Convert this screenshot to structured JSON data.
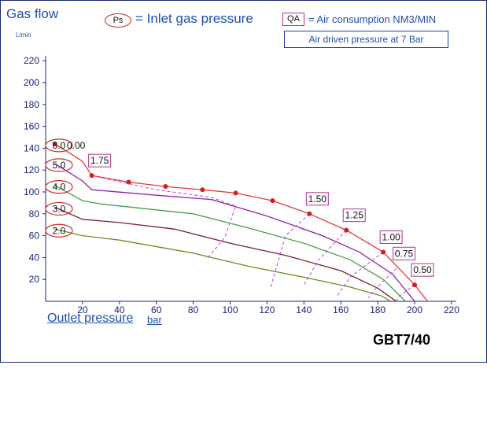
{
  "chart_data": {
    "type": "line",
    "title": "Gas flow",
    "ylabel_unit": "L/min",
    "xlabel": "Outlet pressure",
    "xunit": "bar",
    "model": "GBT7/40",
    "legend": {
      "ps_symbol": "Ps",
      "ps_text": "= Inlet gas pressure",
      "qa_symbol": "QA",
      "qa_text": "= Air consumption NM3/MIN",
      "driven_text": "Air driven pressure at 7 Bar"
    },
    "xlim": [
      0,
      220
    ],
    "ylim": [
      0,
      220
    ],
    "x_ticks": [
      20,
      40,
      60,
      80,
      100,
      120,
      140,
      160,
      180,
      200,
      220
    ],
    "y_ticks": [
      20,
      40,
      60,
      80,
      100,
      120,
      140,
      160,
      180,
      200,
      220
    ],
    "series": [
      {
        "name": "6.0",
        "color": "#e53935",
        "points": [
          [
            5,
            144
          ],
          [
            20,
            128
          ],
          [
            25,
            115
          ],
          [
            45,
            109
          ],
          [
            65,
            105
          ],
          [
            85,
            102
          ],
          [
            103,
            99
          ],
          [
            123,
            92
          ],
          [
            143,
            80
          ],
          [
            163,
            65
          ],
          [
            183,
            45
          ],
          [
            200,
            15
          ],
          [
            207,
            0
          ]
        ]
      },
      {
        "name": "5.0",
        "color": "#8e24aa",
        "points": [
          [
            5,
            126
          ],
          [
            20,
            110
          ],
          [
            25,
            102
          ],
          [
            60,
            97
          ],
          [
            90,
            93
          ],
          [
            120,
            78
          ],
          [
            150,
            60
          ],
          [
            170,
            45
          ],
          [
            188,
            25
          ],
          [
            200,
            0
          ]
        ]
      },
      {
        "name": "4.0",
        "color": "#43a047",
        "points": [
          [
            5,
            106
          ],
          [
            20,
            92
          ],
          [
            30,
            89
          ],
          [
            80,
            80
          ],
          [
            110,
            67
          ],
          [
            140,
            53
          ],
          [
            165,
            38
          ],
          [
            183,
            20
          ],
          [
            195,
            0
          ]
        ]
      },
      {
        "name": "3.0",
        "color": "#7b1f2a",
        "points": [
          [
            5,
            86
          ],
          [
            20,
            75
          ],
          [
            40,
            72
          ],
          [
            70,
            66
          ],
          [
            100,
            53
          ],
          [
            130,
            42
          ],
          [
            160,
            28
          ],
          [
            180,
            12
          ],
          [
            190,
            0
          ]
        ]
      },
      {
        "name": "2.0",
        "color": "#6b8e23",
        "points": [
          [
            5,
            66
          ],
          [
            20,
            60
          ],
          [
            40,
            56
          ],
          [
            80,
            44
          ],
          [
            110,
            32
          ],
          [
            140,
            22
          ],
          [
            165,
            13
          ],
          [
            182,
            5
          ],
          [
            187,
            0
          ]
        ]
      }
    ],
    "qa_lines": [
      {
        "label": "1.75",
        "points": [
          [
            25,
            115
          ],
          [
            60,
            102
          ],
          [
            90,
            95
          ],
          [
            103,
            87
          ],
          [
            97,
            58
          ],
          [
            88,
            40
          ]
        ]
      },
      {
        "label": "1.50",
        "points": [
          [
            143,
            80
          ],
          [
            130,
            60
          ],
          [
            122,
            13
          ]
        ]
      },
      {
        "label": "1.25",
        "points": [
          [
            163,
            65
          ],
          [
            148,
            38
          ],
          [
            140,
            15
          ]
        ]
      },
      {
        "label": "1.00",
        "points": [
          [
            183,
            45
          ],
          [
            165,
            22
          ],
          [
            158,
            5
          ]
        ]
      },
      {
        "label": "0.75",
        "points": [
          [
            190,
            30
          ],
          [
            178,
            10
          ],
          [
            175,
            3
          ]
        ]
      },
      {
        "label": "0.50",
        "points": [
          [
            200,
            15
          ],
          [
            192,
            5
          ],
          [
            190,
            0
          ]
        ]
      }
    ],
    "markers": [
      [
        5,
        144
      ],
      [
        25,
        115
      ],
      [
        45,
        109
      ],
      [
        65,
        105
      ],
      [
        85,
        102
      ],
      [
        103,
        99
      ],
      [
        123,
        92
      ],
      [
        143,
        80
      ],
      [
        163,
        65
      ],
      [
        183,
        45
      ],
      [
        200,
        15
      ]
    ],
    "qa_labels": [
      {
        "text": "1.75",
        "x": 25,
        "y": 115
      },
      {
        "text": "1.50",
        "x": 143,
        "y": 80
      },
      {
        "text": "1.25",
        "x": 163,
        "y": 65
      },
      {
        "text": "1.00",
        "x": 183,
        "y": 45
      },
      {
        "text": "0.75",
        "x": 190,
        "y": 30
      },
      {
        "text": "0.50",
        "x": 200,
        "y": 15
      }
    ],
    "ps_labels": [
      "6.0",
      "5.0",
      "4.0",
      "3.0",
      "2.0"
    ],
    "extra_label": "0.00",
    "colors": {
      "axis": "#1a237e",
      "ps_oval": "#cc2b2b",
      "qa_box": "#b0328e",
      "dash": "#c040e0",
      "marker": "#d81b1b"
    }
  }
}
